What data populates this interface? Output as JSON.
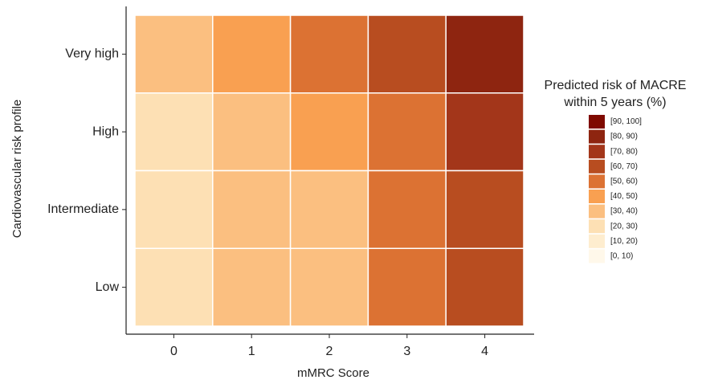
{
  "chart_data": {
    "type": "heatmap",
    "x_label": "mMRC Score",
    "y_label": "Cardiovascular risk profile",
    "x_categories": [
      "0",
      "1",
      "2",
      "3",
      "4"
    ],
    "y_categories": [
      "Very high",
      "High",
      "Intermediate",
      "Low"
    ],
    "values": [
      [
        35,
        45,
        55,
        65,
        85
      ],
      [
        25,
        35,
        45,
        55,
        75
      ],
      [
        25,
        35,
        35,
        55,
        65
      ],
      [
        25,
        35,
        35,
        55,
        65
      ]
    ],
    "legend": {
      "title": [
        "Predicted risk of MACRE",
        "within 5 years (%)"
      ],
      "items": [
        {
          "label": "[90, 100]",
          "range": [
            90,
            100
          ],
          "color": "#7f0a00"
        },
        {
          "label": "[80, 90)",
          "range": [
            80,
            90
          ],
          "color": "#8e2510"
        },
        {
          "label": "[70, 80)",
          "range": [
            70,
            80
          ],
          "color": "#a3361a"
        },
        {
          "label": "[60, 70)",
          "range": [
            60,
            70
          ],
          "color": "#b84d20"
        },
        {
          "label": "[50, 60)",
          "range": [
            50,
            60
          ],
          "color": "#dc7233"
        },
        {
          "label": "[40, 50)",
          "range": [
            40,
            50
          ],
          "color": "#f9a051"
        },
        {
          "label": "[30, 40)",
          "range": [
            30,
            40
          ],
          "color": "#fbbf80"
        },
        {
          "label": "[20, 30)",
          "range": [
            20,
            30
          ],
          "color": "#fde0b4"
        },
        {
          "label": "[10, 20)",
          "range": [
            10,
            20
          ],
          "color": "#feedcf"
        },
        {
          "label": "[0, 10)",
          "range": [
            0,
            10
          ],
          "color": "#fff8ea"
        }
      ]
    }
  }
}
